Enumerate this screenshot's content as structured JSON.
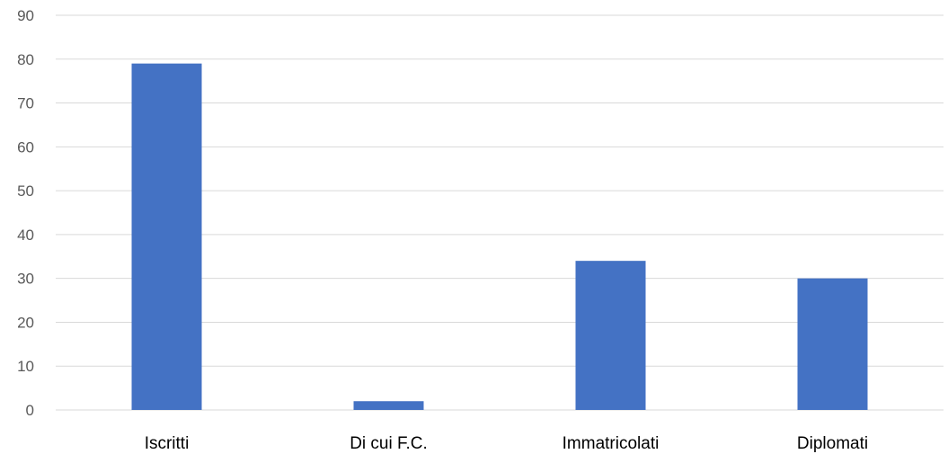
{
  "chart_data": {
    "type": "bar",
    "categories": [
      "Iscritti",
      "Di cui F.C.",
      "Immatricolati",
      "Diplomati"
    ],
    "values": [
      79,
      2,
      34,
      30
    ],
    "title": "",
    "xlabel": "",
    "ylabel": "",
    "ylim": [
      0,
      90
    ],
    "yticks": [
      "0",
      "10",
      "20",
      "30",
      "40",
      "50",
      "60",
      "70",
      "80",
      "90"
    ],
    "grid": true,
    "legend": "none",
    "bar_color": "#4472C4",
    "grid_color": "#D9D9D9"
  }
}
